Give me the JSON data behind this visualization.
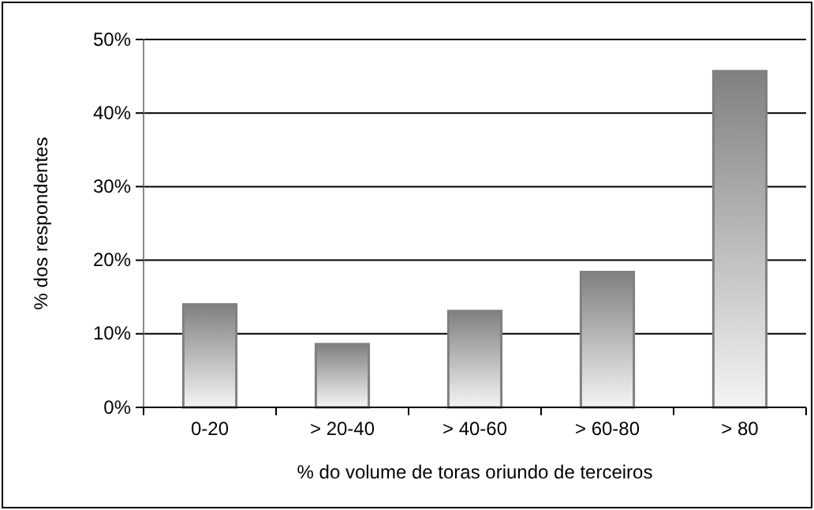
{
  "chart_data": {
    "type": "bar",
    "xlabel": "% do volume de toras oriundo de terceiros",
    "ylabel": "% dos respondentes",
    "categories": [
      "0-20",
      "> 20-40",
      "> 40-60",
      "> 60-80",
      "> 80"
    ],
    "values": [
      14,
      8.6,
      13.1,
      18.4,
      45.7
    ],
    "color": "#808080",
    "ylim": [
      0,
      50
    ],
    "yticks": [
      {
        "value": 0,
        "label": "0%"
      },
      {
        "value": 10,
        "label": "10%"
      },
      {
        "value": 20,
        "label": "20%"
      },
      {
        "value": 30,
        "label": "30%"
      },
      {
        "value": 40,
        "label": "40%"
      },
      {
        "value": 50,
        "label": "50%"
      }
    ],
    "grid": "y"
  }
}
